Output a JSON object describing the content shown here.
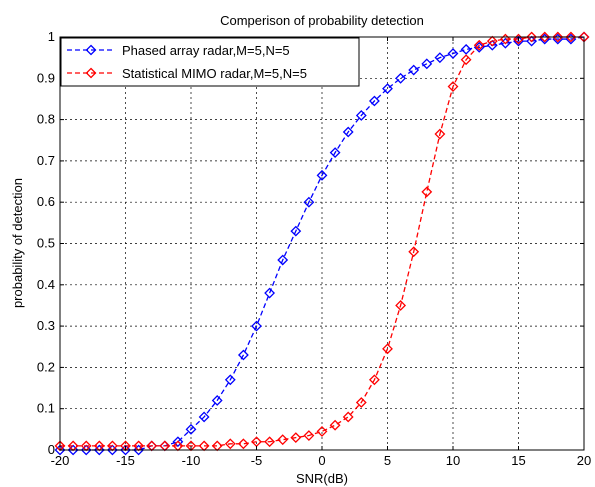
{
  "chart_data": {
    "type": "line",
    "title": "Comperison of probability detection",
    "xlabel": "SNR(dB)",
    "ylabel": "probability of detection",
    "xlim": [
      -20,
      20
    ],
    "ylim": [
      0,
      1
    ],
    "x_ticks": [
      "-20",
      "-15",
      "-10",
      "-5",
      "0",
      "5",
      "10",
      "15",
      "20"
    ],
    "y_ticks": [
      "0",
      "0.1",
      "0.2",
      "0.3",
      "0.4",
      "0.5",
      "0.6",
      "0.7",
      "0.8",
      "0.9",
      "1"
    ],
    "grid": true,
    "legend_position": "top-left",
    "x": [
      -20,
      -19,
      -18,
      -17,
      -16,
      -15,
      -14,
      -13,
      -12,
      -11,
      -10,
      -9,
      -8,
      -7,
      -6,
      -5,
      -4,
      -3,
      -2,
      -1,
      0,
      1,
      2,
      3,
      4,
      5,
      6,
      7,
      8,
      9,
      10,
      11,
      12,
      13,
      14,
      15,
      16,
      17,
      18,
      19,
      20
    ],
    "series": [
      {
        "name": "Phased array radar,M=5,N=5",
        "color": "#0000ff",
        "values": [
          0.0,
          0.0,
          0.0,
          0.0,
          0.0,
          0.0,
          0.0,
          0.01,
          0.01,
          0.02,
          0.05,
          0.08,
          0.12,
          0.17,
          0.23,
          0.3,
          0.38,
          0.46,
          0.53,
          0.6,
          0.665,
          0.72,
          0.77,
          0.81,
          0.845,
          0.875,
          0.9,
          0.92,
          0.935,
          0.95,
          0.96,
          0.97,
          0.975,
          0.98,
          0.985,
          0.99,
          0.99,
          0.995,
          0.995,
          0.995,
          1.0
        ]
      },
      {
        "name": "Statistical MIMO radar,M=5,N=5",
        "color": "#ff0000",
        "values": [
          0.01,
          0.01,
          0.01,
          0.01,
          0.01,
          0.01,
          0.01,
          0.01,
          0.01,
          0.01,
          0.01,
          0.01,
          0.01,
          0.015,
          0.015,
          0.02,
          0.02,
          0.025,
          0.03,
          0.035,
          0.045,
          0.06,
          0.08,
          0.115,
          0.17,
          0.245,
          0.35,
          0.48,
          0.625,
          0.765,
          0.88,
          0.945,
          0.98,
          0.99,
          0.995,
          0.995,
          1.0,
          1.0,
          1.0,
          1.0,
          1.0
        ]
      }
    ]
  }
}
